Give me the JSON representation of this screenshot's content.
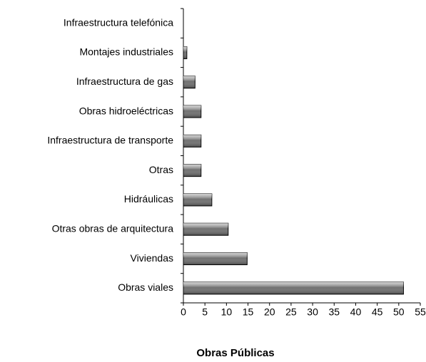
{
  "chart_data": {
    "type": "barh",
    "xlabel": "Obras Públicas",
    "categories": [
      "Infraestructura telefónica",
      "Montajes industriales",
      "Infraestructura de gas",
      "Obras hidroeléctricas",
      "Infraestructura de transporte",
      "Otras",
      "Hidráulicas",
      "Otras obras de arquitectura",
      "Viviendas",
      "Obras viales"
    ],
    "values": [
      0,
      0.8,
      2.7,
      4.1,
      4.1,
      4.1,
      6.6,
      10.4,
      14.8,
      51.1
    ],
    "color": "#707070",
    "xlim": [
      0,
      55
    ],
    "xticks": [
      0,
      5,
      10,
      15,
      20,
      25,
      30,
      35,
      40,
      45,
      50,
      55
    ],
    "grid": false
  }
}
